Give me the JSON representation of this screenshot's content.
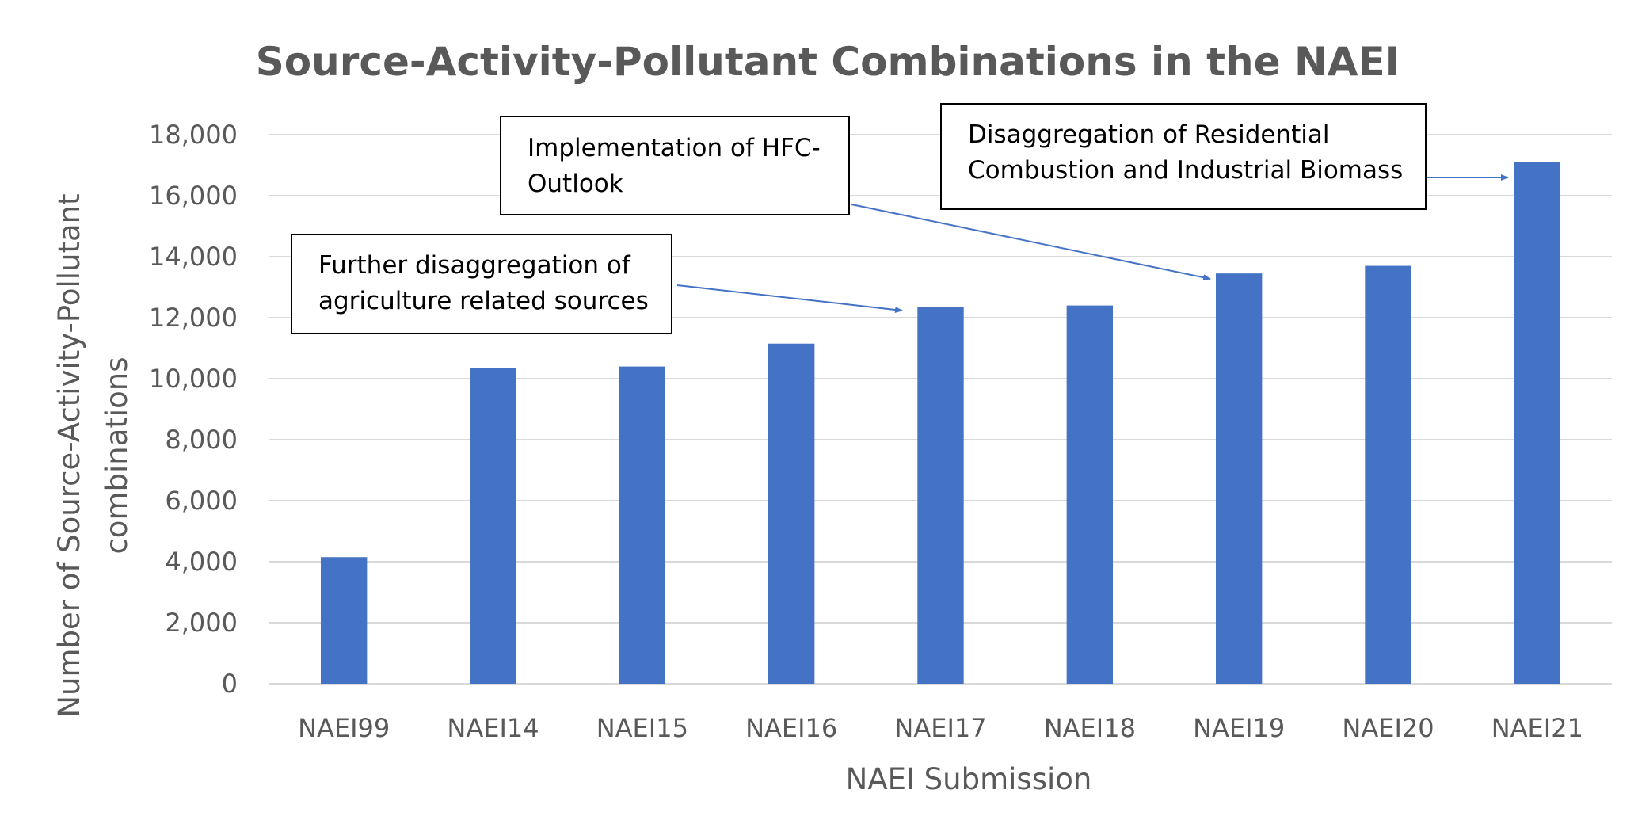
{
  "chart_data": {
    "type": "bar",
    "title": "Source-Activity-Pollutant Combinations in the NAEI",
    "xlabel": "NAEI Submission",
    "ylabel_lines": [
      "Number of Source-Activity-Pollutant",
      "combinations"
    ],
    "categories": [
      "NAEI99",
      "NAEI14",
      "NAEI15",
      "NAEI16",
      "NAEI17",
      "NAEI18",
      "NAEI19",
      "NAEI20",
      "NAEI21"
    ],
    "values": [
      4150,
      10350,
      10400,
      11150,
      12350,
      12400,
      13450,
      13700,
      17100
    ],
    "ylim": [
      0,
      18000
    ],
    "yticks": [
      "0",
      "2,000",
      "4,000",
      "6,000",
      "8,000",
      "10,000",
      "12,000",
      "14,000",
      "16,000",
      "18,000"
    ],
    "grid": true,
    "legend": "none",
    "colors": {
      "bar": "#4472c4",
      "grid": "#d9d9d9",
      "text": "#595959",
      "arrow": "#4472c4"
    },
    "annotations": [
      {
        "lines": [
          "Further disaggregation of",
          "agriculture related sources"
        ],
        "target": "NAEI17"
      },
      {
        "lines": [
          "Implementation of HFC-",
          "Outlook"
        ],
        "target": "NAEI19"
      },
      {
        "lines": [
          "Disaggregation of Residential",
          "Combustion and Industrial Biomass"
        ],
        "target": "NAEI21"
      }
    ]
  }
}
